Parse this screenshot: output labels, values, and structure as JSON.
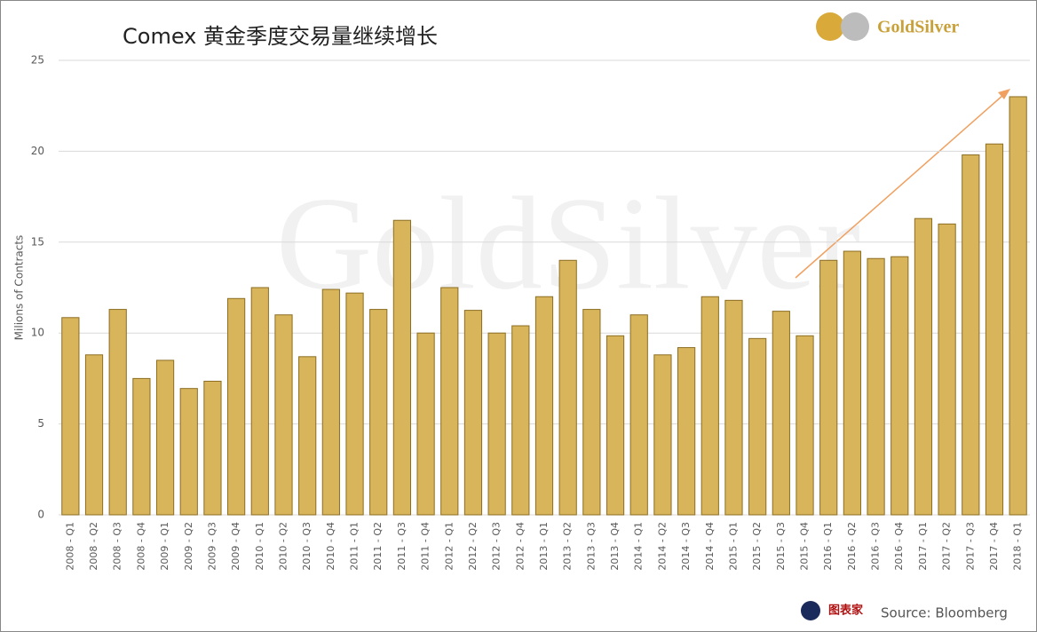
{
  "chart_data": {
    "type": "bar",
    "title": "Comex 黄金季度交易量继续增长",
    "y_label": "Milions of Contracts",
    "source": "Source: Bloomberg",
    "logo": "GoldSilver",
    "watermark": "GoldSilver",
    "credit": "图表家",
    "color": "#d8b55a",
    "edge_color": "#8c6d22",
    "arrow_color": "#f0a060",
    "grid": true,
    "ylim": [
      0,
      25
    ],
    "yticks": [
      0,
      5,
      10,
      15,
      20,
      25
    ],
    "categories": [
      "2008 - Q1",
      "2008 - Q2",
      "2008 - Q3",
      "2008 - Q4",
      "2009 - Q1",
      "2009 - Q2",
      "2009 - Q3",
      "2009 - Q4",
      "2010 - Q1",
      "2010 - Q2",
      "2010 - Q3",
      "2010 - Q4",
      "2011 - Q1",
      "2011 - Q2",
      "2011 - Q3",
      "2011 - Q4",
      "2012 - Q1",
      "2012 - Q2",
      "2012 - Q3",
      "2012 - Q4",
      "2013 - Q1",
      "2013 - Q2",
      "2013 - Q3",
      "2013 - Q4",
      "2014 - Q1",
      "2014 - Q2",
      "2014 - Q3",
      "2014 - Q4",
      "2015 - Q1",
      "2015 - Q2",
      "2015 - Q3",
      "2015 - Q4",
      "2016 - Q1",
      "2016 - Q2",
      "2016 - Q3",
      "2016 - Q4",
      "2017 - Q1",
      "2017 - Q2",
      "2017 - Q3",
      "2017 - Q4",
      "2018 - Q1"
    ],
    "values": [
      10.85,
      8.8,
      11.3,
      7.5,
      8.5,
      6.95,
      7.35,
      11.9,
      12.5,
      11.0,
      8.7,
      12.4,
      12.2,
      11.3,
      16.2,
      10.0,
      12.5,
      11.25,
      10.0,
      10.4,
      12.0,
      14.0,
      11.3,
      9.85,
      11.0,
      8.8,
      9.2,
      12.0,
      11.8,
      9.7,
      11.2,
      9.85,
      14.0,
      14.5,
      14.1,
      14.2,
      16.3,
      16.0,
      19.8,
      20.4,
      23.0
    ]
  }
}
